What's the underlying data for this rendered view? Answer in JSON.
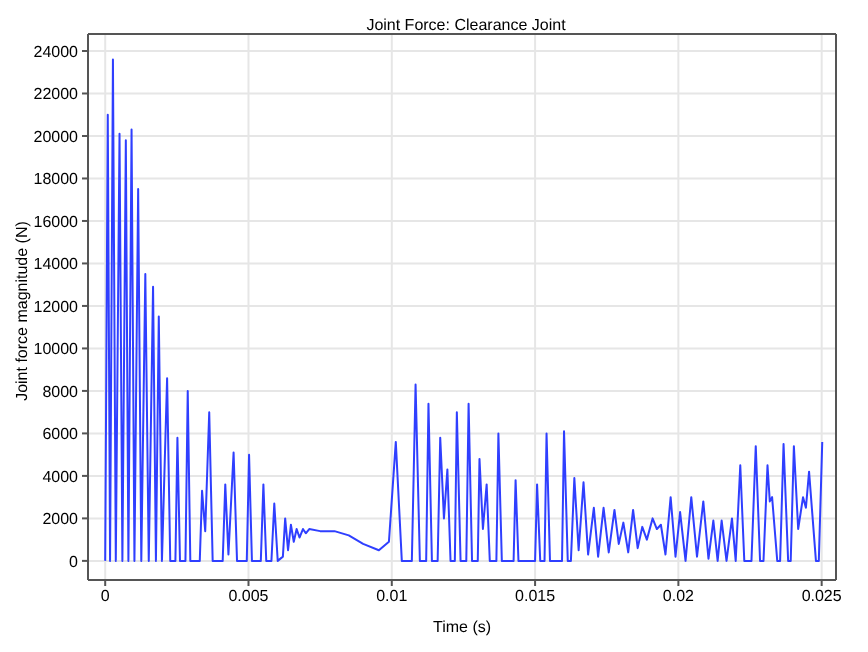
{
  "chart_data": {
    "type": "line",
    "title": "Joint Force: Clearance Joint",
    "xlabel": "Time (s)",
    "ylabel": "Joint force magnitude (N)",
    "xlim": [
      -0.0006,
      0.0255
    ],
    "xticks": [
      0,
      0.005,
      0.01,
      0.015,
      0.02,
      0.025
    ],
    "ylim": [
      -900,
      24800
    ],
    "yticks": [
      0,
      2000,
      4000,
      6000,
      8000,
      10000,
      12000,
      14000,
      16000,
      18000,
      20000,
      22000,
      24000
    ],
    "grid": true,
    "marker": "none",
    "line_style": "solid",
    "series": [
      {
        "color": "#2f3fff",
        "x": [
          0,
          9e-05,
          0.00017,
          0.00027,
          0.00037,
          0.0005,
          0.0006,
          0.00072,
          0.00081,
          0.00092,
          0.00102,
          0.00115,
          0.00126,
          0.0014,
          0.00152,
          0.00167,
          0.00177,
          0.00187,
          0.00198,
          0.00216,
          0.00227,
          0.00245,
          0.00252,
          0.00261,
          0.0028,
          0.00288,
          0.00297,
          0.0033,
          0.00338,
          0.00349,
          0.00363,
          0.00375,
          0.0041,
          0.00419,
          0.0043,
          0.00448,
          0.0046,
          0.00494,
          0.00502,
          0.00512,
          0.00543,
          0.00552,
          0.00562,
          0.0058,
          0.0059,
          0.00602,
          0.0062,
          0.00628,
          0.00638,
          0.00648,
          0.00658,
          0.00668,
          0.00678,
          0.0069,
          0.007,
          0.00712,
          0.0075,
          0.008,
          0.0085,
          0.009,
          0.00955,
          0.0099,
          0.01014,
          0.01035,
          0.0107,
          0.01083,
          0.01098,
          0.0112,
          0.01128,
          0.0114,
          0.0116,
          0.01169,
          0.01182,
          0.01194,
          0.01205,
          0.0122,
          0.01227,
          0.0124,
          0.0126,
          0.01268,
          0.0128,
          0.013,
          0.01306,
          0.01318,
          0.01331,
          0.01342,
          0.01365,
          0.01372,
          0.01384,
          0.01425,
          0.01432,
          0.01442,
          0.015,
          0.01507,
          0.01518,
          0.01533,
          0.0154,
          0.01552,
          0.01594,
          0.01601,
          0.01614,
          0.01625,
          0.01637,
          0.01652,
          0.01669,
          0.01685,
          0.01705,
          0.0172,
          0.01739,
          0.01757,
          0.01777,
          0.01792,
          0.01808,
          0.01825,
          0.01842,
          0.01858,
          0.01874,
          0.0189,
          0.0191,
          0.01925,
          0.01939,
          0.01955,
          0.01973,
          0.0199,
          0.02006,
          0.02025,
          0.02045,
          0.02065,
          0.02087,
          0.02105,
          0.02122,
          0.02137,
          0.02151,
          0.02168,
          0.02187,
          0.022,
          0.02216,
          0.0223,
          0.02255,
          0.0227,
          0.02285,
          0.02297,
          0.02311,
          0.02319,
          0.02327,
          0.02345,
          0.02355,
          0.02367,
          0.02383,
          0.02392,
          0.02403,
          0.02418,
          0.02435,
          0.02445,
          0.02456,
          0.0248,
          0.0249,
          0.02502
        ],
        "values": [
          0,
          21000,
          0,
          23600,
          0,
          20100,
          0,
          19800,
          0,
          20300,
          0,
          17500,
          0,
          13500,
          0,
          12900,
          0,
          11500,
          0,
          8600,
          0,
          0,
          5800,
          0,
          0,
          8000,
          0,
          0,
          3300,
          1400,
          7000,
          0,
          0,
          3600,
          300,
          5100,
          0,
          0,
          5000,
          0,
          0,
          3600,
          0,
          0,
          2700,
          0,
          200,
          2000,
          500,
          1700,
          900,
          1500,
          1100,
          1500,
          1300,
          1500,
          1400,
          1400,
          1200,
          800,
          500,
          900,
          5600,
          0,
          0,
          8300,
          0,
          0,
          7400,
          0,
          0,
          5800,
          2000,
          4300,
          0,
          0,
          7000,
          0,
          0,
          7400,
          0,
          0,
          4800,
          1500,
          3600,
          0,
          0,
          6000,
          0,
          0,
          3800,
          0,
          0,
          3600,
          0,
          0,
          6000,
          0,
          0,
          6100,
          0,
          0,
          3900,
          500,
          3700,
          300,
          2500,
          200,
          2500,
          400,
          2400,
          800,
          1800,
          400,
          2400,
          600,
          1600,
          1000,
          2000,
          1500,
          1700,
          300,
          3000,
          200,
          2300,
          0,
          3000,
          200,
          2800,
          100,
          1900,
          0,
          1900,
          0,
          2000,
          0,
          4500,
          0,
          0,
          5400,
          0,
          0,
          4500,
          2800,
          3000,
          0,
          0,
          5500,
          0,
          0,
          5400,
          1500,
          3000,
          2500,
          4200,
          0,
          0,
          5600
        ]
      }
    ]
  }
}
